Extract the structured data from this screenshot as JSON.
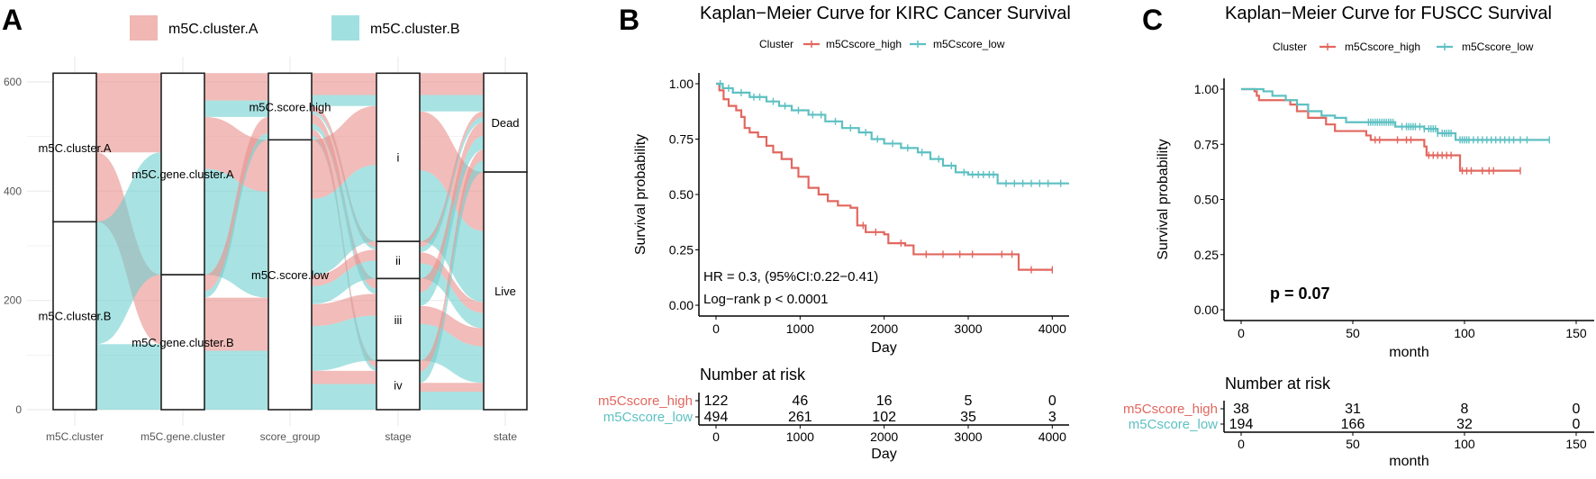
{
  "chart_data": [
    {
      "type": "alluvial",
      "panel_label": "A",
      "legend": [
        "m5C.cluster.A",
        "m5C.cluster.B"
      ],
      "colors": [
        "#E8908A",
        "#6FCFCF"
      ],
      "yticks": [
        0,
        200,
        400,
        600
      ],
      "ylim": [
        0,
        616
      ],
      "axes": [
        {
          "name": "m5C.cluster",
          "strata": [
            {
              "label": "m5C.cluster.A",
              "count": 272
            },
            {
              "label": "m5C.cluster.B",
              "count": 344
            }
          ]
        },
        {
          "name": "m5C.gene.cluster",
          "strata": [
            {
              "label": "m5C.gene.cluster.A",
              "count": 369
            },
            {
              "label": "m5C.gene.cluster.B",
              "count": 247
            }
          ]
        },
        {
          "name": "score_group",
          "strata": [
            {
              "label": "m5C.score.high",
              "count": 122
            },
            {
              "label": "m5C.score.low",
              "count": 494
            }
          ]
        },
        {
          "name": "stage",
          "strata": [
            {
              "label": "i",
              "count": 308
            },
            {
              "label": "ii",
              "count": 68
            },
            {
              "label": "iii",
              "count": 150
            },
            {
              "label": "iv",
              "count": 90
            }
          ]
        },
        {
          "name": "state",
          "strata": [
            {
              "label": "Dead",
              "count": 181
            },
            {
              "label": "Live",
              "count": 435
            }
          ]
        }
      ],
      "flows": [
        [
          [
            0,
            0,
            0,
            145
          ],
          [
            0,
            1,
            0,
            127
          ],
          [
            1,
            0,
            1,
            224
          ],
          [
            1,
            1,
            1,
            120
          ]
        ],
        [
          [
            0,
            0,
            0,
            50
          ],
          [
            0,
            0,
            1,
            30
          ],
          [
            0,
            1,
            0,
            95
          ],
          [
            0,
            1,
            1,
            194
          ],
          [
            1,
            0,
            0,
            30
          ],
          [
            1,
            0,
            1,
            12
          ],
          [
            1,
            1,
            0,
            97
          ],
          [
            1,
            1,
            1,
            108
          ]
        ],
        [
          [
            0,
            0,
            0,
            40
          ],
          [
            0,
            0,
            1,
            20
          ],
          [
            0,
            1,
            0,
            10
          ],
          [
            0,
            1,
            1,
            5
          ],
          [
            0,
            2,
            0,
            18
          ],
          [
            0,
            2,
            1,
            10
          ],
          [
            0,
            3,
            0,
            12
          ],
          [
            0,
            3,
            1,
            7
          ],
          [
            1,
            0,
            0,
            108
          ],
          [
            1,
            0,
            1,
            140
          ],
          [
            1,
            1,
            0,
            20
          ],
          [
            1,
            1,
            1,
            33
          ],
          [
            1,
            2,
            0,
            40
          ],
          [
            1,
            2,
            1,
            82
          ],
          [
            1,
            3,
            0,
            24
          ],
          [
            1,
            3,
            1,
            47
          ]
        ],
        [
          [
            0,
            0,
            0,
            40
          ],
          [
            0,
            0,
            1,
            30
          ],
          [
            0,
            1,
            0,
            108
          ],
          [
            0,
            1,
            1,
            130
          ],
          [
            1,
            0,
            0,
            10
          ],
          [
            1,
            0,
            1,
            10
          ],
          [
            1,
            1,
            0,
            20
          ],
          [
            1,
            1,
            1,
            28
          ],
          [
            2,
            0,
            0,
            25
          ],
          [
            2,
            0,
            1,
            25
          ],
          [
            2,
            1,
            0,
            33
          ],
          [
            2,
            1,
            1,
            67
          ],
          [
            3,
            0,
            0,
            20
          ],
          [
            3,
            0,
            1,
            21
          ],
          [
            3,
            1,
            0,
            16
          ],
          [
            3,
            1,
            1,
            33
          ]
        ]
      ]
    },
    {
      "type": "line",
      "panel_label": "B",
      "title": "Kaplan−Meier Curve for KIRC Cancer Survival",
      "legend_title": "Cluster",
      "xlabel": "Day",
      "ylabel": "Survival probability",
      "xticks": [
        0,
        1000,
        2000,
        3000,
        4000
      ],
      "yticks": [
        "0.00",
        "0.25",
        "0.50",
        "0.75",
        "1.00"
      ],
      "xlim": [
        -200,
        4200
      ],
      "ylim": [
        0,
        1
      ],
      "annotations": [
        "HR = 0.3, (95%CI:0.22−0.41)",
        "Log−rank p < 0.0001"
      ],
      "series": [
        {
          "name": "m5Cscore_high",
          "color": "#E2675F",
          "points": [
            [
              0,
              1
            ],
            [
              40,
              0.97
            ],
            [
              90,
              0.93
            ],
            [
              150,
              0.9
            ],
            [
              240,
              0.88
            ],
            [
              300,
              0.85
            ],
            [
              340,
              0.8
            ],
            [
              400,
              0.78
            ],
            [
              500,
              0.76
            ],
            [
              600,
              0.72
            ],
            [
              680,
              0.69
            ],
            [
              780,
              0.66
            ],
            [
              900,
              0.62
            ],
            [
              980,
              0.58
            ],
            [
              1100,
              0.53
            ],
            [
              1220,
              0.5
            ],
            [
              1330,
              0.47
            ],
            [
              1450,
              0.45
            ],
            [
              1600,
              0.44
            ],
            [
              1680,
              0.36
            ],
            [
              1780,
              0.33
            ],
            [
              2000,
              0.32
            ],
            [
              2050,
              0.28
            ],
            [
              2250,
              0.27
            ],
            [
              2350,
              0.23
            ],
            [
              3600,
              0.23
            ],
            [
              3600,
              0.16
            ],
            [
              4000,
              0.16
            ]
          ],
          "censor": [
            1750,
            1900,
            2200,
            2500,
            2700,
            2900,
            3050,
            3400,
            3520,
            3750,
            4000
          ]
        },
        {
          "name": "m5Cscore_low",
          "color": "#5EC0C2",
          "points": [
            [
              0,
              1
            ],
            [
              80,
              0.98
            ],
            [
              200,
              0.96
            ],
            [
              400,
              0.94
            ],
            [
              600,
              0.92
            ],
            [
              750,
              0.9
            ],
            [
              900,
              0.88
            ],
            [
              1100,
              0.86
            ],
            [
              1300,
              0.83
            ],
            [
              1500,
              0.8
            ],
            [
              1700,
              0.78
            ],
            [
              1850,
              0.75
            ],
            [
              2000,
              0.73
            ],
            [
              2200,
              0.71
            ],
            [
              2400,
              0.69
            ],
            [
              2550,
              0.66
            ],
            [
              2700,
              0.63
            ],
            [
              2850,
              0.6
            ],
            [
              3000,
              0.59
            ],
            [
              3350,
              0.59
            ],
            [
              3350,
              0.55
            ],
            [
              4200,
              0.55
            ]
          ],
          "censor": [
            50,
            150,
            300,
            450,
            520,
            680,
            820,
            980,
            1150,
            1250,
            1420,
            1600,
            1780,
            1920,
            2100,
            2280,
            2450,
            2650,
            2800,
            2950,
            3050,
            3120,
            3180,
            3250,
            3300,
            3450,
            3550,
            3650,
            3750,
            3850,
            3950,
            4100
          ]
        }
      ],
      "risk_table": {
        "title": "Number at risk",
        "rows": [
          {
            "name": "m5Cscore_high",
            "values": [
              "122",
              "46",
              "16",
              "5",
              "0"
            ]
          },
          {
            "name": "m5Cscore_low",
            "values": [
              "494",
              "261",
              "102",
              "35",
              "3"
            ]
          }
        ]
      }
    },
    {
      "type": "line",
      "panel_label": "C",
      "title": "Kaplan−Meier Curve for FUSCC Survival",
      "legend_title": "Cluster",
      "xlabel": "month",
      "ylabel": "Survival probability",
      "xticks": [
        0,
        50,
        100,
        150
      ],
      "yticks": [
        "0.00",
        "0.25",
        "0.50",
        "0.75",
        "1.00"
      ],
      "xlim": [
        -8,
        158
      ],
      "ylim": [
        0,
        1
      ],
      "annotations": [
        "p = 0.07"
      ],
      "series": [
        {
          "name": "m5Cscore_high",
          "color": "#E2675F",
          "points": [
            [
              0,
              1
            ],
            [
              6,
              0.99
            ],
            [
              7,
              0.97
            ],
            [
              8,
              0.95
            ],
            [
              22,
              0.93
            ],
            [
              25,
              0.9
            ],
            [
              30,
              0.87
            ],
            [
              38,
              0.84
            ],
            [
              42,
              0.81
            ],
            [
              56,
              0.79
            ],
            [
              58,
              0.77
            ],
            [
              82,
              0.74
            ],
            [
              83,
              0.7
            ],
            [
              98,
              0.63
            ],
            [
              125,
              0.63
            ]
          ],
          "censor": [
            60,
            62,
            70,
            74,
            76,
            84,
            86,
            88,
            90,
            92,
            94,
            99,
            101,
            103,
            108,
            111,
            113,
            125
          ]
        },
        {
          "name": "m5Cscore_low",
          "color": "#5EC0C2",
          "points": [
            [
              0,
              1
            ],
            [
              10,
              0.99
            ],
            [
              14,
              0.97
            ],
            [
              20,
              0.95
            ],
            [
              25,
              0.93
            ],
            [
              30,
              0.9
            ],
            [
              36,
              0.88
            ],
            [
              42,
              0.87
            ],
            [
              47,
              0.85
            ],
            [
              69,
              0.83
            ],
            [
              82,
              0.82
            ],
            [
              88,
              0.8
            ],
            [
              96,
              0.77
            ],
            [
              138,
              0.77
            ]
          ],
          "censor": [
            57,
            58,
            59,
            60,
            61,
            62,
            63,
            64,
            65,
            66,
            67,
            68,
            72,
            74,
            75,
            76,
            77,
            78,
            80,
            82,
            84,
            85,
            86,
            87,
            88,
            90,
            91,
            92,
            93,
            94,
            98,
            99,
            100,
            101,
            102,
            104,
            106,
            108,
            110,
            112,
            114,
            116,
            118,
            120,
            122,
            125,
            128,
            138
          ]
        }
      ],
      "risk_table": {
        "title": "Number at risk",
        "rows": [
          {
            "name": "m5Cscore_high",
            "values": [
              "38",
              "31",
              "8",
              "0"
            ]
          },
          {
            "name": "m5Cscore_low",
            "values": [
              "194",
              "166",
              "32",
              "0"
            ]
          }
        ]
      }
    }
  ]
}
